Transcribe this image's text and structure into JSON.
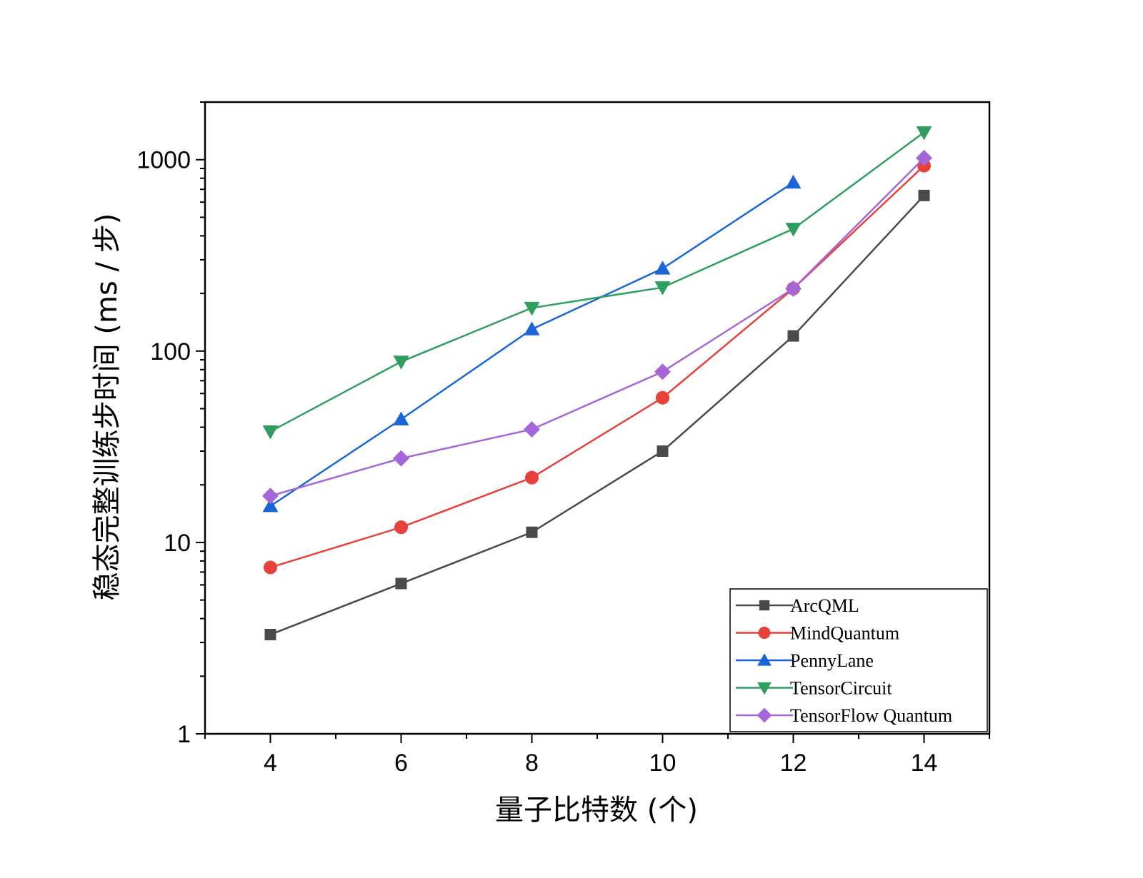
{
  "chart_data": {
    "type": "line",
    "title": "",
    "xlabel": "量子比特数 (个)",
    "ylabel": "稳态完整训练步时间 (ms / 步)",
    "x_scale": "linear",
    "y_scale": "log",
    "xlim": [
      3,
      15
    ],
    "ylim": [
      1,
      2000
    ],
    "x_ticks": [
      4,
      6,
      8,
      10,
      12,
      14
    ],
    "x_tick_labels": [
      "4",
      "6",
      "8",
      "10",
      "12",
      "14"
    ],
    "y_ticks": [
      1,
      10,
      100,
      1000
    ],
    "y_tick_labels": [
      "1",
      "10",
      "100",
      "1000"
    ],
    "grid": false,
    "legend_position": "bottom-right",
    "series": [
      {
        "name": "ArcQML",
        "color": "#4a4a4a",
        "marker": "square",
        "x": [
          4,
          6,
          8,
          10,
          12,
          14
        ],
        "values": [
          3.3,
          6.1,
          11.3,
          30,
          120,
          650
        ]
      },
      {
        "name": "MindQuantum",
        "color": "#e8403a",
        "marker": "circle",
        "x": [
          4,
          6,
          8,
          10,
          12,
          14
        ],
        "values": [
          7.4,
          12,
          21.8,
          57,
          212,
          930
        ]
      },
      {
        "name": "PennyLane",
        "color": "#1a66d9",
        "marker": "triangle-up",
        "x": [
          4,
          6,
          8,
          10,
          12
        ],
        "values": [
          15.5,
          44,
          130,
          270,
          760
        ]
      },
      {
        "name": "TensorCircuit",
        "color": "#2f9e5e",
        "marker": "triangle-down",
        "x": [
          4,
          6,
          8,
          10,
          12,
          14
        ],
        "values": [
          38,
          88,
          168,
          215,
          435,
          1390
        ]
      },
      {
        "name": "TensorFlow Quantum",
        "color": "#a466d9",
        "marker": "diamond",
        "x": [
          4,
          6,
          8,
          10,
          12,
          14
        ],
        "values": [
          17.5,
          27.5,
          39,
          78,
          212,
          1020
        ]
      }
    ]
  }
}
